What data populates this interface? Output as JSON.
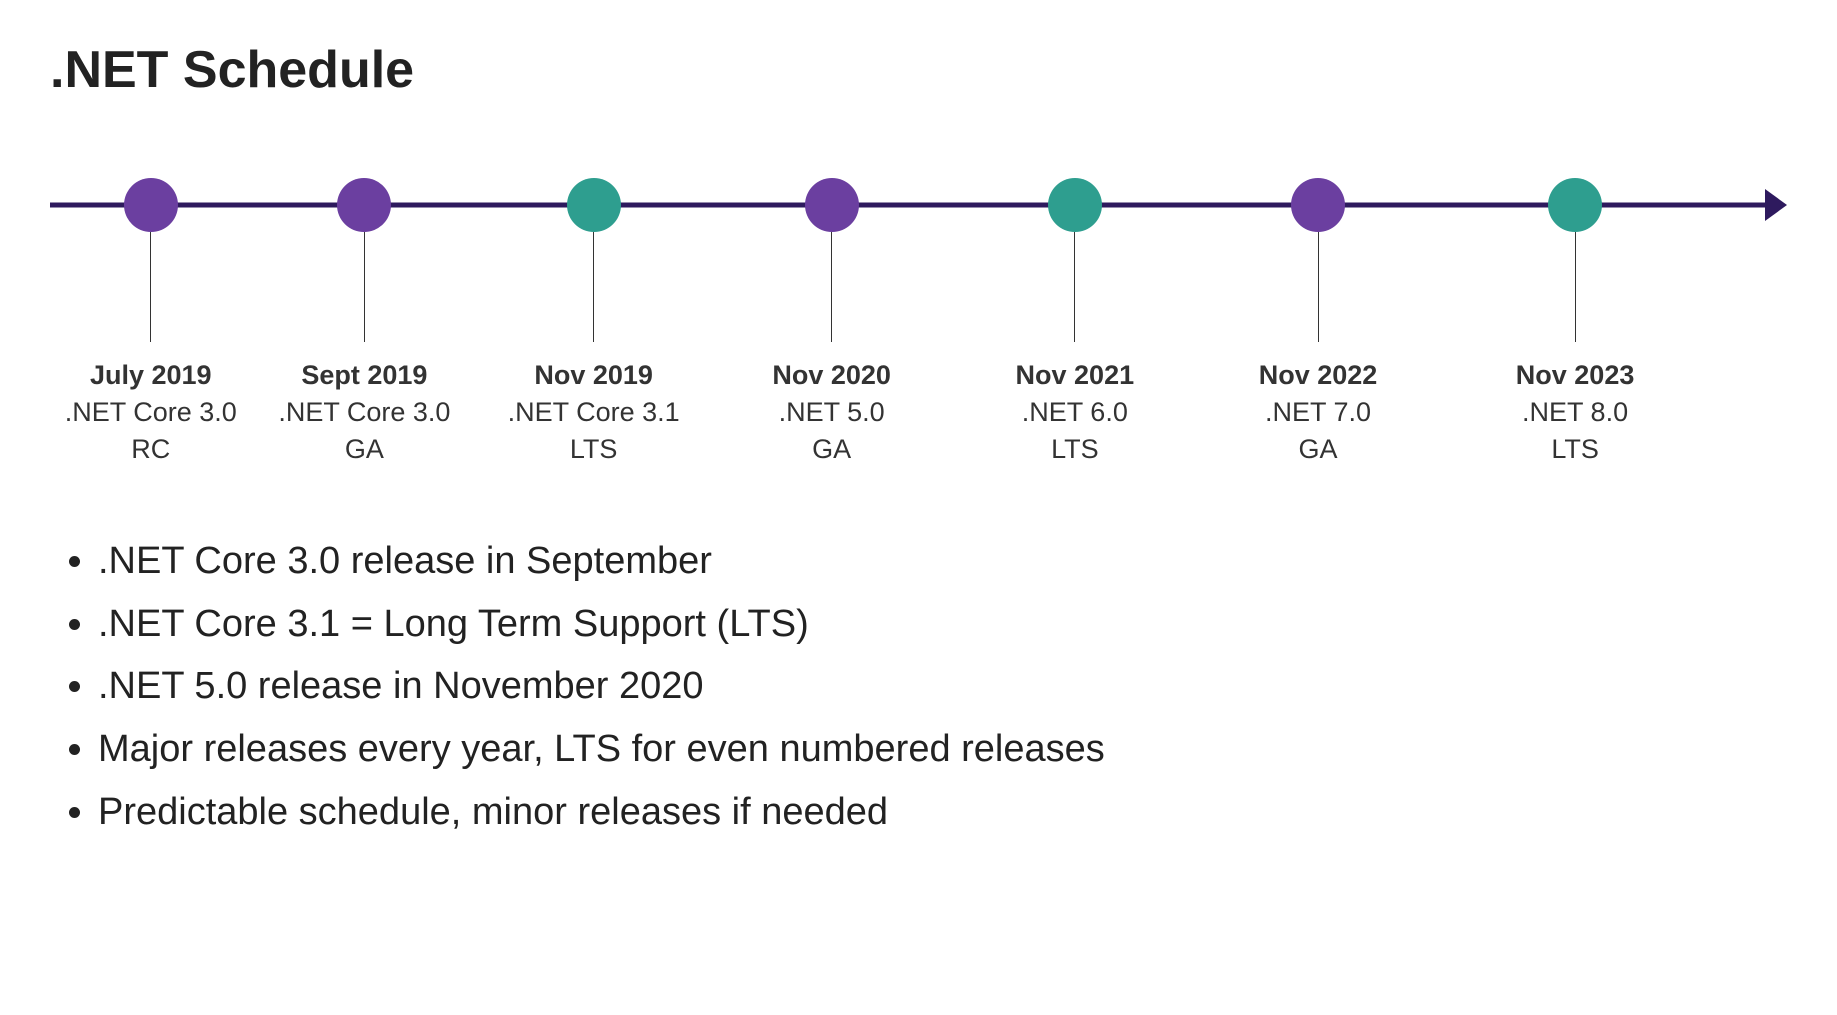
{
  "title": ".NET Schedule",
  "timeline": {
    "line_color": "#2e1a5e",
    "line_width": 5,
    "arrow_size": 16,
    "dot_radius": 27,
    "stem_color": "#333333",
    "stem_width": 1,
    "stem_height": 110,
    "date_fontsize": 27,
    "line_fontsize": 27,
    "label_color": "#333333",
    "color_ga": "#6b3fa0",
    "color_lts": "#2e9e8f",
    "milestones": [
      {
        "x_pct": 5.8,
        "color_key": "color_ga",
        "date": "July 2019",
        "line1": ".NET Core 3.0",
        "line2": "RC"
      },
      {
        "x_pct": 18.1,
        "color_key": "color_ga",
        "date": "Sept 2019",
        "line1": ".NET Core 3.0",
        "line2": "GA"
      },
      {
        "x_pct": 31.3,
        "color_key": "color_lts",
        "date": "Nov 2019",
        "line1": ".NET Core 3.1",
        "line2": "LTS"
      },
      {
        "x_pct": 45.0,
        "color_key": "color_ga",
        "date": "Nov 2020",
        "line1": ".NET 5.0",
        "line2": "GA"
      },
      {
        "x_pct": 59.0,
        "color_key": "color_lts",
        "date": "Nov 2021",
        "line1": ".NET 6.0",
        "line2": "LTS"
      },
      {
        "x_pct": 73.0,
        "color_key": "color_ga",
        "date": "Nov 2022",
        "line1": ".NET 7.0",
        "line2": "GA"
      },
      {
        "x_pct": 87.8,
        "color_key": "color_lts",
        "date": "Nov 2023",
        "line1": ".NET 8.0",
        "line2": "LTS"
      }
    ]
  },
  "bullets": [
    ".NET Core 3.0 release in September",
    ".NET Core 3.1 = Long Term Support (LTS)",
    ".NET 5.0 release in November 2020",
    "Major releases every year, LTS for even numbered releases",
    "Predictable schedule, minor releases if needed"
  ]
}
